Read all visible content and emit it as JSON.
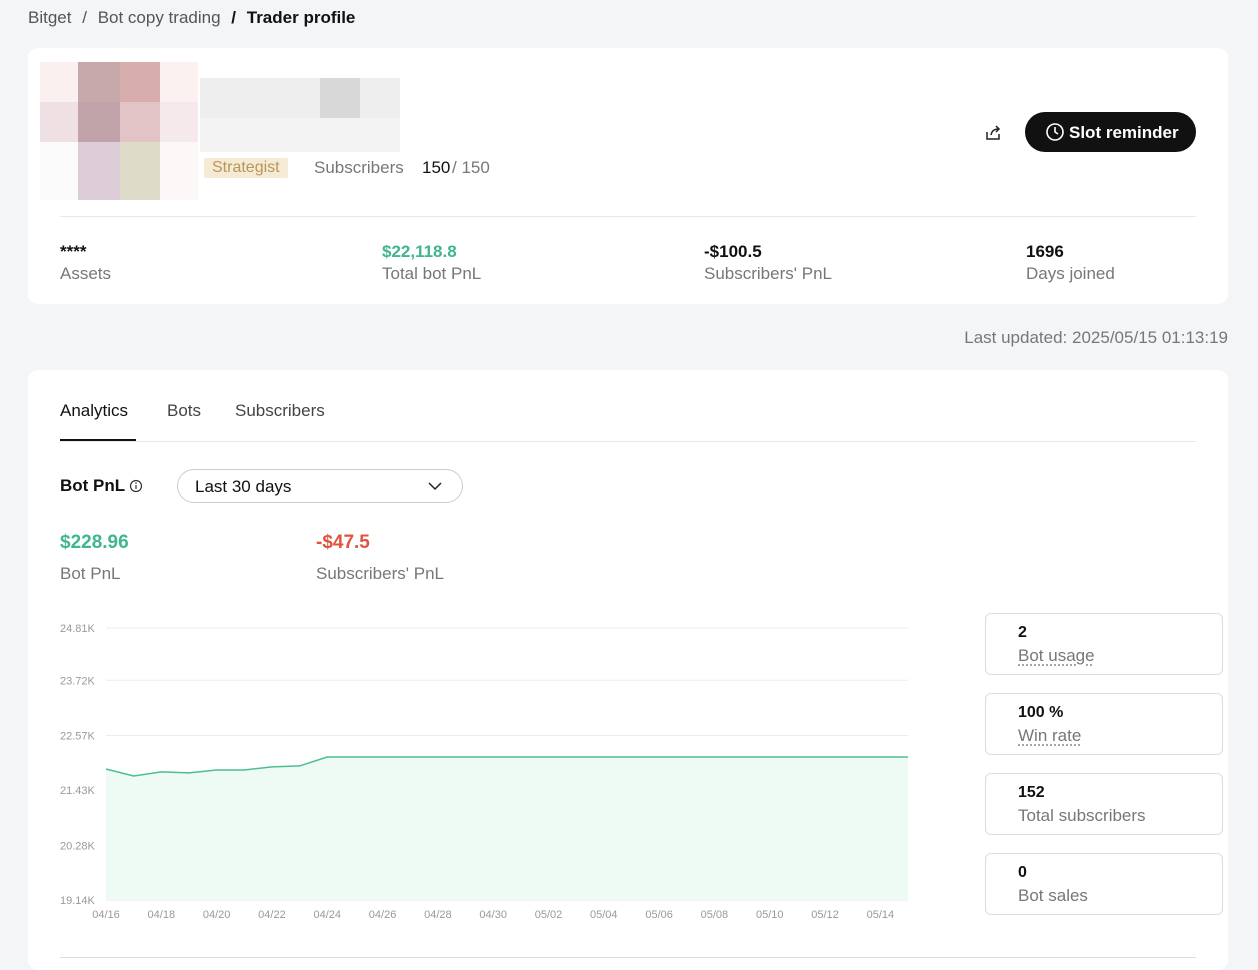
{
  "breadcrumb": {
    "items": [
      "Bitget",
      "Bot copy trading",
      "Trader profile"
    ],
    "separator": "/"
  },
  "profile": {
    "badge": "Strategist",
    "subscribers_label": "Subscribers",
    "subscribers_count": "150",
    "subscribers_capacity": "/ 150",
    "button": "Slot reminder"
  },
  "stats": [
    {
      "value": "****",
      "label": "Assets"
    },
    {
      "value": "$22,118.8",
      "label": "Total bot PnL"
    },
    {
      "value": "-$100.5",
      "label": "Subscribers' PnL"
    },
    {
      "value": "1696",
      "label": "Days joined"
    }
  ],
  "last_updated": {
    "label": "Last updated:",
    "value": "2025/05/15 01:13:19"
  },
  "tabs": [
    "Analytics",
    "Bots",
    "Subscribers"
  ],
  "pnl": {
    "title": "Bot PnL",
    "range": "Last 30 days",
    "summary": [
      {
        "value": "$228.96",
        "label": "Bot PnL"
      },
      {
        "value": "-$47.5",
        "label": "Subscribers' PnL"
      }
    ]
  },
  "side_stats": [
    {
      "value": "2",
      "label": "Bot usage"
    },
    {
      "value": "100 %",
      "label": "Win rate"
    },
    {
      "value": "152",
      "label": "Total subscribers"
    },
    {
      "value": "0",
      "label": "Bot sales"
    }
  ],
  "chart_data": {
    "type": "area",
    "categories": [
      "04/16",
      null,
      "04/18",
      null,
      "04/20",
      null,
      "04/22",
      null,
      "04/24",
      null,
      "04/26",
      null,
      "04/28",
      null,
      "04/30",
      null,
      "05/02",
      null,
      "05/04",
      null,
      "05/06",
      null,
      "05/08",
      null,
      "05/10",
      null,
      "05/12",
      null,
      "05/14",
      null
    ],
    "values": [
      21870,
      21725,
      21810,
      21790,
      21850,
      21850,
      21915,
      21935,
      22120,
      22120,
      22120,
      22120,
      22120,
      22120,
      22120,
      22120,
      22120,
      22120,
      22120,
      22120,
      22120,
      22120,
      22120,
      22120,
      22120,
      22120,
      22120,
      22120,
      22120,
      22120
    ],
    "color": "#4cbf8f",
    "fill": "#eefaf4",
    "ylim": [
      19140,
      24810
    ],
    "yticks": [
      {
        "value": 19140,
        "label": "19.14K"
      },
      {
        "value": 20280,
        "label": "20.28K"
      },
      {
        "value": 21430,
        "label": "21.43K"
      },
      {
        "value": 22570,
        "label": "22.57K"
      },
      {
        "value": 23720,
        "label": "23.72K"
      },
      {
        "value": 24810,
        "label": "24.81K"
      }
    ],
    "grid": true
  }
}
